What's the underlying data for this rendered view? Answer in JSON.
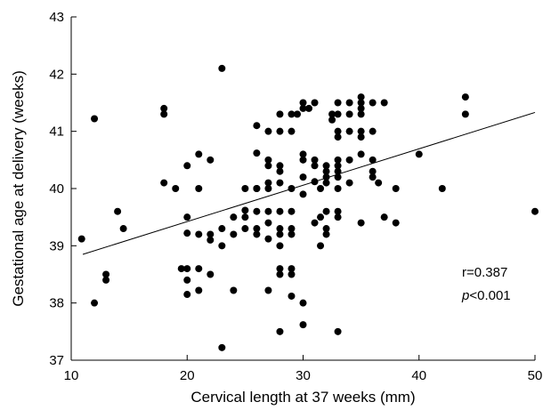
{
  "chart_data": {
    "type": "scatter",
    "title": "",
    "xlabel": "Cervical length at 37 weeks (mm)",
    "ylabel": "Gestational age at delivery (weeks)",
    "xlim": [
      10,
      50
    ],
    "ylim": [
      37,
      43
    ],
    "xticks": [
      10,
      20,
      30,
      40,
      50
    ],
    "yticks": [
      37,
      38,
      39,
      40,
      41,
      42,
      43
    ],
    "grid": false,
    "legend": "none",
    "annotations": {
      "r_text": "r=0.387",
      "p_symbol": "p",
      "p_rest": "<0.001"
    },
    "regression_line": {
      "x": [
        11,
        50
      ],
      "y": [
        38.85,
        41.33
      ]
    },
    "points": [
      [
        10.9,
        39.12
      ],
      [
        12,
        41.22
      ],
      [
        12,
        38.0
      ],
      [
        13,
        38.5
      ],
      [
        13,
        38.4
      ],
      [
        14,
        39.6
      ],
      [
        14.5,
        39.3
      ],
      [
        18,
        41.4
      ],
      [
        18,
        41.3
      ],
      [
        18,
        40.1
      ],
      [
        19,
        40.0
      ],
      [
        19.5,
        38.6
      ],
      [
        20,
        40.4
      ],
      [
        20,
        39.5
      ],
      [
        20,
        39.22
      ],
      [
        20,
        38.6
      ],
      [
        20,
        38.4
      ],
      [
        20,
        38.15
      ],
      [
        21,
        40.6
      ],
      [
        21,
        40.0
      ],
      [
        21,
        39.2
      ],
      [
        21,
        38.6
      ],
      [
        21,
        38.22
      ],
      [
        22,
        40.5
      ],
      [
        22,
        39.2
      ],
      [
        22,
        39.1
      ],
      [
        22,
        38.5
      ],
      [
        23,
        42.1
      ],
      [
        23,
        39.3
      ],
      [
        23,
        39.0
      ],
      [
        23,
        37.22
      ],
      [
        24,
        39.5
      ],
      [
        24,
        39.2
      ],
      [
        24,
        38.22
      ],
      [
        25,
        40.0
      ],
      [
        25,
        39.62
      ],
      [
        25,
        39.5
      ],
      [
        25,
        39.3
      ],
      [
        26,
        41.1
      ],
      [
        26,
        40.62
      ],
      [
        26,
        40.0
      ],
      [
        26,
        40.0
      ],
      [
        26,
        39.6
      ],
      [
        26,
        39.3
      ],
      [
        26,
        39.2
      ],
      [
        27,
        41.0
      ],
      [
        27,
        40.5
      ],
      [
        27,
        40.4
      ],
      [
        27,
        40.1
      ],
      [
        27,
        40.0
      ],
      [
        27,
        39.6
      ],
      [
        27,
        39.4
      ],
      [
        27,
        39.12
      ],
      [
        27,
        38.22
      ],
      [
        28,
        41.3
      ],
      [
        28,
        41.0
      ],
      [
        28,
        40.4
      ],
      [
        28,
        40.3
      ],
      [
        28,
        40.1
      ],
      [
        28,
        39.6
      ],
      [
        28,
        39.3
      ],
      [
        28,
        39.2
      ],
      [
        28,
        39.0
      ],
      [
        28,
        38.6
      ],
      [
        28,
        38.5
      ],
      [
        28,
        37.5
      ],
      [
        29,
        41.3
      ],
      [
        29,
        41.0
      ],
      [
        29,
        40.0
      ],
      [
        29,
        39.6
      ],
      [
        29,
        39.3
      ],
      [
        29,
        39.2
      ],
      [
        29,
        38.6
      ],
      [
        29,
        38.5
      ],
      [
        29,
        38.12
      ],
      [
        29.5,
        41.3
      ],
      [
        30,
        41.5
      ],
      [
        30,
        41.4
      ],
      [
        30,
        40.6
      ],
      [
        30,
        40.5
      ],
      [
        30,
        40.2
      ],
      [
        30,
        39.9
      ],
      [
        30,
        38.0
      ],
      [
        30,
        37.62
      ],
      [
        30.5,
        41.4
      ],
      [
        31,
        41.5
      ],
      [
        31,
        40.5
      ],
      [
        31,
        40.4
      ],
      [
        31,
        40.12
      ],
      [
        31,
        39.4
      ],
      [
        31.5,
        40.0
      ],
      [
        31.5,
        39.5
      ],
      [
        31.5,
        39.0
      ],
      [
        32,
        40.4
      ],
      [
        32,
        40.3
      ],
      [
        32,
        40.2
      ],
      [
        32,
        40.1
      ],
      [
        32,
        39.6
      ],
      [
        32,
        39.3
      ],
      [
        32,
        39.2
      ],
      [
        32.5,
        41.3
      ],
      [
        32.5,
        41.2
      ],
      [
        33,
        41.5
      ],
      [
        33,
        41.3
      ],
      [
        33,
        41.0
      ],
      [
        33,
        40.9
      ],
      [
        33,
        40.5
      ],
      [
        33,
        40.4
      ],
      [
        33,
        40.3
      ],
      [
        33,
        40.2
      ],
      [
        33,
        40.0
      ],
      [
        33,
        39.6
      ],
      [
        33,
        39.5
      ],
      [
        33,
        37.5
      ],
      [
        34,
        41.5
      ],
      [
        34,
        41.3
      ],
      [
        34,
        41.0
      ],
      [
        34,
        40.5
      ],
      [
        34,
        40.1
      ],
      [
        35,
        41.6
      ],
      [
        35,
        41.5
      ],
      [
        35,
        41.4
      ],
      [
        35,
        41.3
      ],
      [
        35,
        41.0
      ],
      [
        35,
        40.9
      ],
      [
        35,
        40.6
      ],
      [
        35,
        39.4
      ],
      [
        36,
        41.5
      ],
      [
        36,
        41.0
      ],
      [
        36,
        40.5
      ],
      [
        36,
        40.3
      ],
      [
        36,
        40.2
      ],
      [
        36.5,
        40.1
      ],
      [
        37,
        41.5
      ],
      [
        37,
        39.5
      ],
      [
        38,
        40.0
      ],
      [
        38,
        39.4
      ],
      [
        40,
        40.6
      ],
      [
        42,
        40.0
      ],
      [
        44,
        41.6
      ],
      [
        44,
        41.3
      ],
      [
        50,
        39.6
      ]
    ]
  }
}
